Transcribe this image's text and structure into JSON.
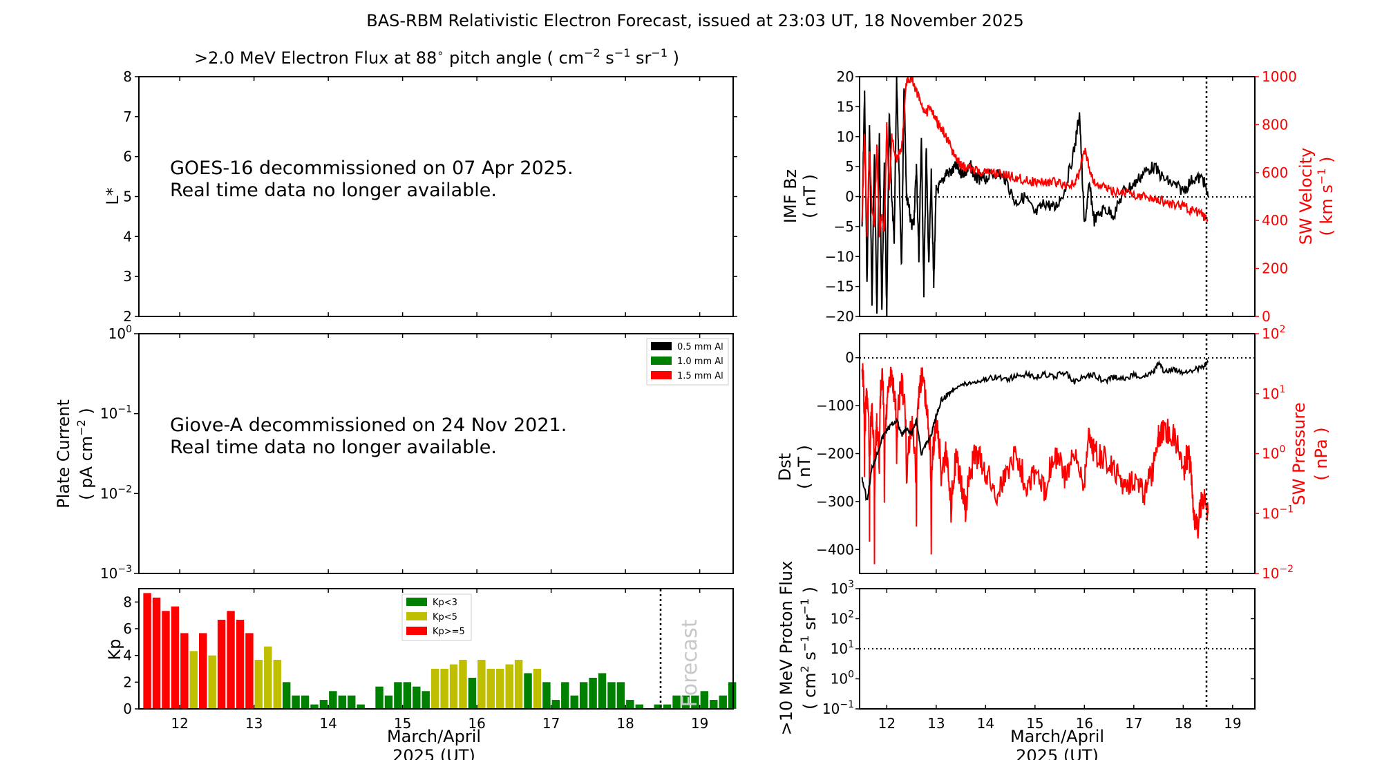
{
  "title": "BAS-RBM Relativistic Electron Forecast, issued at 23:03 UT, 18 November 2025",
  "colors": {
    "kp_low": "#008000",
    "kp_mid": "#bfbf00",
    "kp_high": "#ff0000",
    "series_black": "#000000",
    "series_red": "#ff0000"
  },
  "chart_data": [
    {
      "id": "electron-flux",
      "type": "heatmap",
      "title_pre": ">2.0 MeV Electron Flux at 88",
      "title_deg": "∘",
      "title_post": " pitch angle ( cm",
      "title_post2": " s",
      "title_post3": " sr",
      "title_post4": " )",
      "exp_minus2": "−2",
      "exp_minus1": "−1",
      "ylabel": "L*",
      "ylim": [
        2,
        8
      ],
      "yticks": [
        "2",
        "3",
        "4",
        "5",
        "6",
        "7",
        "8"
      ],
      "message_line1": "GOES-16 decommissioned on 07 Apr 2025.",
      "message_line2": "Real time data no longer available."
    },
    {
      "id": "plate-current",
      "type": "line",
      "ylabel_line1": "Plate Current",
      "ylabel_line2_a": "( pA cm",
      "ylabel_line2_exp": "−2",
      "ylabel_line2_b": " )",
      "yscale": "log",
      "ylim": [
        0.001,
        1
      ],
      "ytick_base": "10",
      "yticks_exp": [
        "−3",
        "−2",
        "−1",
        "0"
      ],
      "legend_position": "top-right",
      "legend": [
        {
          "label": "0.5 mm Al",
          "color": "#000000"
        },
        {
          "label": "1.0 mm Al",
          "color": "#008000"
        },
        {
          "label": "1.5 mm Al",
          "color": "#ff0000"
        }
      ],
      "message_line1": "Giove-A decommissioned on 24 Nov 2021.",
      "message_line2": "Real time data no longer available."
    },
    {
      "id": "kp",
      "type": "bar",
      "ylabel": "Kp",
      "ylim": [
        0,
        9
      ],
      "yticks": [
        "0",
        "2",
        "4",
        "6",
        "8"
      ],
      "xlim": [
        11.45,
        19.45
      ],
      "xticks": [
        "12",
        "13",
        "14",
        "15",
        "16",
        "17",
        "18",
        "19"
      ],
      "xlabel_line1": "March/April",
      "xlabel_line2": "2025 (UT)",
      "forecast_label": "Forecast",
      "forecast_start": 18.5,
      "legend_position": "top-center",
      "legend": [
        {
          "label": "Kp<3",
          "color": "#008000"
        },
        {
          "label": "Kp<5",
          "color": "#bfbf00"
        },
        {
          "label": "Kp>=5",
          "color": "#ff0000"
        }
      ],
      "bin_start": 11.5,
      "bin_width": 0.125,
      "values": [
        8.67,
        8.33,
        7.33,
        7.67,
        5.67,
        4.33,
        5.67,
        4.0,
        6.67,
        7.33,
        6.67,
        5.67,
        3.67,
        4.67,
        3.67,
        2.0,
        1.0,
        1.0,
        0.33,
        0.67,
        1.33,
        1.0,
        1.0,
        0.33,
        0,
        1.67,
        1.0,
        2.0,
        2.0,
        1.67,
        1.33,
        3.0,
        3.0,
        3.33,
        3.67,
        2.33,
        3.67,
        3.0,
        3.0,
        3.33,
        3.67,
        2.67,
        3.0,
        2.0,
        0.67,
        2.0,
        1.0,
        2.0,
        2.33,
        2.67,
        2.0,
        2.0,
        0.67,
        0.33,
        0,
        0.33,
        0.33,
        1.0,
        1.0,
        1.0,
        1.33,
        0.67,
        1.0,
        2.0
      ]
    },
    {
      "id": "imf-sw",
      "type": "line",
      "ylabel_line1": "IMF Bz",
      "ylabel_line2": "( nT )",
      "ylim": [
        -20,
        20
      ],
      "yticks": [
        "−20",
        "−15",
        "−10",
        "−5",
        "0",
        "5",
        "10",
        "15",
        "20"
      ],
      "ylabel_right_line1": "SW Velocity",
      "ylabel_right_line2_a": "( km s",
      "ylabel_right_line2_exp": "−1",
      "ylabel_right_line2_b": " )",
      "ylim_right": [
        0,
        1000
      ],
      "yticks_right": [
        "0",
        "200",
        "400",
        "600",
        "800",
        "1000"
      ],
      "xlim": [
        11.45,
        19.45
      ],
      "now": 18.5,
      "series": [
        {
          "name": "IMF Bz",
          "color": "#000000",
          "x": [
            11.5,
            11.55,
            11.6,
            11.65,
            11.7,
            11.75,
            11.8,
            11.85,
            11.9,
            11.95,
            12.0,
            12.05,
            12.1,
            12.15,
            12.2,
            12.25,
            12.3,
            12.35,
            12.4,
            12.45,
            12.5,
            12.55,
            12.6,
            12.65,
            12.7,
            12.75,
            12.8,
            12.85,
            12.9,
            12.95,
            13.0,
            13.1,
            13.2,
            13.3,
            13.4,
            13.5,
            13.6,
            13.7,
            13.8,
            13.9,
            14.0,
            14.2,
            14.4,
            14.6,
            14.8,
            15.0,
            15.2,
            15.4,
            15.6,
            15.8,
            15.9,
            16.0,
            16.1,
            16.2,
            16.4,
            16.6,
            16.8,
            17.0,
            17.2,
            17.4,
            17.6,
            17.8,
            18.0,
            18.2,
            18.4,
            18.5
          ],
          "values": [
            -5,
            18,
            -15,
            12,
            -18,
            8,
            -20,
            10,
            -19,
            6,
            -20,
            14,
            0,
            -8,
            20,
            4,
            -12,
            19,
            0,
            -2,
            -5,
            -4,
            5,
            -10,
            10,
            -16,
            8,
            -12,
            4,
            -15,
            1,
            2,
            4,
            4,
            5,
            4,
            4,
            5,
            3,
            3,
            3,
            4,
            3,
            -1,
            0,
            -3,
            -1,
            -2,
            1,
            8,
            14,
            -5,
            2,
            -4,
            -2,
            -3,
            1,
            2,
            4,
            5,
            3,
            2,
            1,
            3,
            3,
            0
          ]
        },
        {
          "name": "SW Velocity",
          "color": "#ff0000",
          "x": [
            11.5,
            11.55,
            11.6,
            11.65,
            11.7,
            11.75,
            11.8,
            11.85,
            11.9,
            11.95,
            12.0,
            12.05,
            12.1,
            12.2,
            12.3,
            12.4,
            12.5,
            12.6,
            12.7,
            12.8,
            12.9,
            13.0,
            13.1,
            13.2,
            13.3,
            13.4,
            13.5,
            13.6,
            13.8,
            14.0,
            14.2,
            14.4,
            14.6,
            14.8,
            15.0,
            15.2,
            15.4,
            15.6,
            15.8,
            15.9,
            16.0,
            16.1,
            16.2,
            16.4,
            16.6,
            16.8,
            17.0,
            17.2,
            17.4,
            17.6,
            17.8,
            18.0,
            18.2,
            18.4,
            18.5
          ],
          "values": [
            400,
            780,
            330,
            700,
            450,
            380,
            720,
            350,
            430,
            350,
            790,
            520,
            750,
            650,
            700,
            980,
            1000,
            940,
            880,
            850,
            870,
            820,
            780,
            750,
            700,
            660,
            630,
            620,
            610,
            600,
            600,
            590,
            580,
            570,
            560,
            560,
            560,
            550,
            550,
            600,
            700,
            620,
            560,
            540,
            520,
            520,
            510,
            500,
            490,
            480,
            470,
            460,
            440,
            420,
            400
          ]
        }
      ]
    },
    {
      "id": "dst-pressure",
      "type": "line",
      "ylabel_line1": "Dst",
      "ylabel_line2": "( nT )",
      "ylim": [
        -450,
        50
      ],
      "yticks": [
        "−400",
        "−300",
        "−200",
        "−100",
        "0"
      ],
      "ylabel_right_line1": "SW Pressure",
      "ylabel_right_line2": "( nPa )",
      "yscale_right": "log",
      "ylim_right": [
        0.01,
        100
      ],
      "ytick_base": "10",
      "yticks_right_exp": [
        "−2",
        "−1",
        "0",
        "1",
        "2"
      ],
      "xlim": [
        11.45,
        19.45
      ],
      "now": 18.5,
      "series": [
        {
          "name": "Dst",
          "color": "#000000",
          "x": [
            11.5,
            11.6,
            11.7,
            11.8,
            11.9,
            12.0,
            12.1,
            12.2,
            12.3,
            12.4,
            12.5,
            12.6,
            12.7,
            12.8,
            12.9,
            13.0,
            13.1,
            13.2,
            13.3,
            13.4,
            13.6,
            13.8,
            14.0,
            14.2,
            14.4,
            14.6,
            14.8,
            15.0,
            15.2,
            15.4,
            15.6,
            15.8,
            16.0,
            16.2,
            16.4,
            16.6,
            16.8,
            17.0,
            17.2,
            17.4,
            17.5,
            17.6,
            17.8,
            18.0,
            18.2,
            18.4,
            18.5
          ],
          "values": [
            -250,
            -300,
            -230,
            -200,
            -170,
            -150,
            -140,
            -130,
            -160,
            -150,
            -160,
            -130,
            -200,
            -180,
            -160,
            -120,
            -90,
            -80,
            -70,
            -60,
            -55,
            -50,
            -45,
            -40,
            -45,
            -40,
            -35,
            -40,
            -35,
            -40,
            -30,
            -50,
            -40,
            -35,
            -50,
            -40,
            -45,
            -35,
            -40,
            -30,
            -10,
            -30,
            -25,
            -30,
            -25,
            -20,
            -10
          ]
        },
        {
          "name": "SW Pressure",
          "color": "#ff0000",
          "x": [
            11.5,
            11.55,
            11.6,
            11.65,
            11.7,
            11.75,
            11.8,
            11.85,
            11.9,
            11.95,
            12.0,
            12.1,
            12.2,
            12.3,
            12.4,
            12.5,
            12.6,
            12.7,
            12.8,
            12.9,
            13.0,
            13.1,
            13.2,
            13.3,
            13.4,
            13.5,
            13.6,
            13.7,
            13.8,
            14.0,
            14.2,
            14.4,
            14.6,
            14.8,
            15.0,
            15.2,
            15.4,
            15.6,
            15.8,
            16.0,
            16.1,
            16.2,
            16.4,
            16.6,
            16.8,
            17.0,
            17.2,
            17.4,
            17.5,
            17.6,
            17.8,
            18.0,
            18.1,
            18.2,
            18.3,
            18.4,
            18.5
          ],
          "values": [
            30,
            0.5,
            10,
            0.05,
            5,
            0.02,
            3,
            0.3,
            20,
            0.1,
            5,
            20,
            1,
            15,
            0.2,
            3,
            0.1,
            20,
            5,
            0.02,
            3,
            0.4,
            1,
            0.05,
            0.8,
            0.3,
            0.1,
            0.5,
            1,
            0.5,
            0.2,
            0.4,
            1,
            0.3,
            0.5,
            0.2,
            1,
            0.4,
            0.8,
            0.3,
            2,
            1,
            0.8,
            0.5,
            0.3,
            0.4,
            0.2,
            0.5,
            2,
            2.5,
            2,
            0.5,
            1,
            0.1,
            0.05,
            0.2,
            0.1
          ]
        }
      ]
    },
    {
      "id": "proton-flux",
      "type": "line",
      "ylabel_line1": ">10 MeV Proton Flux",
      "ylabel_line2_a": "( cm",
      "ylabel_line2_exp1": "2",
      "ylabel_line2_b": " s",
      "ylabel_line2_exp2": "−1",
      "ylabel_line2_c": " sr",
      "ylabel_line2_exp3": "−1",
      "ylabel_line2_d": " )",
      "yscale": "log",
      "ylim": [
        0.1,
        1000
      ],
      "ytick_base": "10",
      "yticks_exp": [
        "−1",
        "0",
        "1",
        "2",
        "3"
      ],
      "threshold": 10,
      "xlim": [
        11.45,
        19.45
      ],
      "now": 18.5,
      "xticks": [
        "12",
        "13",
        "14",
        "15",
        "16",
        "17",
        "18",
        "19"
      ],
      "xlabel_line1": "March/April",
      "xlabel_line2": "2025 (UT)"
    }
  ]
}
